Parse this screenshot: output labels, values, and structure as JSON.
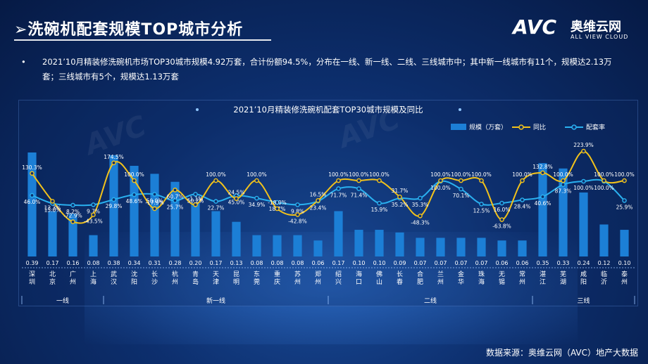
{
  "header": {
    "title": "➢洗碗机配套规模TOP城市分析",
    "logo_mark": "AVC",
    "logo_cn": "奥维云网",
    "logo_en": "ALL VIEW CLOUD"
  },
  "summary": {
    "bullet": "•",
    "text": "2021’10月精装修洗碗机市场TOP30城市规模4.92万套，合计份额94.5%，分布在一线、新一线、二线、三线城市中；其中新一线城市有11个，规模达2.13万套；三线城市有5个，规模达1.13万套"
  },
  "footer": {
    "source": "数据来源：奥维云网（AVC）地产大数据"
  },
  "colors": {
    "bar": "#1c7fd6",
    "yoy": "#f2c21b",
    "ratio": "#2ab1f0",
    "text": "#ffffff"
  },
  "chart_data": {
    "type": "bar",
    "title": "2021’10月精装修洗碗机配套TOP30城市规模及同比",
    "categories": [
      "深圳",
      "北京",
      "广州",
      "上海",
      "武汉",
      "沈阳",
      "长沙",
      "杭州",
      "青岛",
      "天津",
      "昆明",
      "东莞",
      "重庆",
      "苏州",
      "郑州",
      "绍兴",
      "海口",
      "佛山",
      "长春",
      "合肥",
      "兰州",
      "金华",
      "珠海",
      "无锡",
      "常州",
      "湛江",
      "芜湖",
      "咸阳",
      "临沂",
      "泰州"
    ],
    "groups": [
      {
        "name": "一线",
        "start": 0,
        "end": 3
      },
      {
        "name": "新一线",
        "start": 4,
        "end": 14
      },
      {
        "name": "二线",
        "start": 15,
        "end": 24
      },
      {
        "name": "三线",
        "start": 25,
        "end": 29
      }
    ],
    "series": [
      {
        "name": "规模（万套）",
        "type": "bar",
        "values": [
          0.39,
          0.17,
          0.16,
          0.08,
          0.38,
          0.34,
          0.31,
          0.28,
          0.2,
          0.17,
          0.13,
          0.08,
          0.08,
          0.08,
          0.06,
          0.17,
          0.1,
          0.1,
          0.09,
          0.07,
          0.07,
          0.07,
          0.07,
          0.06,
          0.06,
          0.35,
          0.33,
          0.24,
          0.12,
          0.1
        ],
        "labels": [
          "0.39",
          "0.17",
          "0.16",
          "0.08",
          "0.38",
          "0.34",
          "0.31",
          "0.28",
          "0.20",
          "0.17",
          "0.13",
          "0.08",
          "0.08",
          "0.08",
          "0.06",
          "0.17",
          "0.10",
          "0.10",
          "0.09",
          "0.07",
          "0.07",
          "0.07",
          "0.07",
          "0.06",
          "0.06",
          "0.35",
          "0.33",
          "0.24",
          "0.12",
          "0.10"
        ]
      },
      {
        "name": "同比",
        "type": "line",
        "values": [
          130.3,
          13.3,
          -72.9,
          -43.5,
          174.5,
          100.0,
          -17.9,
          60.7,
          -1.1,
          100.0,
          24.5,
          100.0,
          -18.0,
          -42.8,
          16.5,
          100.0,
          100.0,
          100.0,
          31.7,
          -48.3,
          100.0,
          100.0,
          100.0,
          -63.8,
          100.0,
          132.8,
          100.0,
          223.9,
          100.0,
          100.0
        ],
        "labels": [
          "130.3%",
          "13.3%",
          "-72.9%",
          "-43.5%",
          "174.5%",
          "100.0%",
          "-17.9%",
          "60.7%",
          "-1.1%",
          "100.0%",
          "24.5%",
          "100.0%",
          "-18.0%",
          "-42.8%",
          "16.5%",
          "100.0%",
          "100.0%",
          "100.0%",
          "31.7%",
          "-48.3%",
          "100.0%",
          "100.0%",
          "100.0%",
          "-63.8%",
          "100.0%",
          "132.8%",
          "100.0%",
          "223.9%",
          "100.0%",
          "100.0%"
        ]
      },
      {
        "name": "配套率",
        "type": "line",
        "values": [
          46.0,
          15.0,
          8.2,
          9.7,
          29.8,
          48.6,
          50.0,
          25.7,
          50.2,
          22.7,
          45.0,
          34.9,
          18.7,
          9.8,
          23.4,
          71.7,
          71.4,
          15.9,
          35.2,
          35.3,
          100.0,
          70.1,
          12.5,
          16.0,
          28.4,
          40.6,
          87.3,
          100.0,
          100.0,
          25.9
        ],
        "labels": [
          "46.0%",
          "15.0%",
          "8.2%",
          "9.7%",
          "29.8%",
          "48.6%",
          "50.0%",
          "25.7%",
          "50.2%",
          "22.7%",
          "45.0%",
          "34.9%",
          "18.7%",
          "9.8%",
          "23.4%",
          "71.7%",
          "71.4%",
          "15.9%",
          "35.2%",
          "35.3%",
          "100.0%",
          "70.1%",
          "12.5%",
          "16.0%",
          "28.4%",
          "40.6%",
          "87.3%",
          "100.0%",
          "100.0%",
          "25.9%"
        ]
      }
    ],
    "legend": [
      "规模（万套）",
      "同比",
      "配套率"
    ],
    "legend_position": "top-right",
    "grid": false
  }
}
